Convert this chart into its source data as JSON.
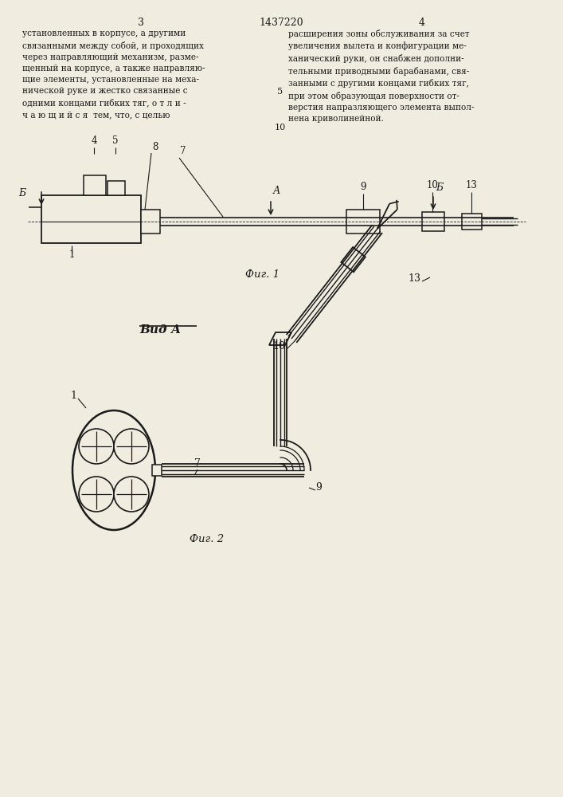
{
  "title": "1437220",
  "page_left": "3",
  "page_right": "4",
  "background_color": "#f0ece0",
  "line_color": "#1a1a1a",
  "text_color": "#1a1a1a",
  "text_left": "установленных в корпусе, а другими\nсвязанными между собой, и проходящих\nчерез направляющий механизм, разме-\nщенный на корпусе, а также направляю-\nщие элементы, установленные на меха-\nнической руке и жестко связанные с\nодними концами гибких тяг, о т л и -\nч а ю щ и й с я  тем, что, с целью",
  "text_right": "расширения зоны обслуживания за счет\nувеличения вылета и конфигурации ме-\nханический руки, он снабжен дополни-\nтельными приводными барабанами, свя-\nзанными с другими концами гибких тяг,\nпри этом образующая поверхности от-\nверстия напразляющего элемента выпол-\nнена криволинейной.",
  "line5": "5",
  "line10": "10",
  "fig1_label": "Фиг. 1",
  "fig2_label": "Фиг. 2",
  "vidA_label": "Вид А"
}
